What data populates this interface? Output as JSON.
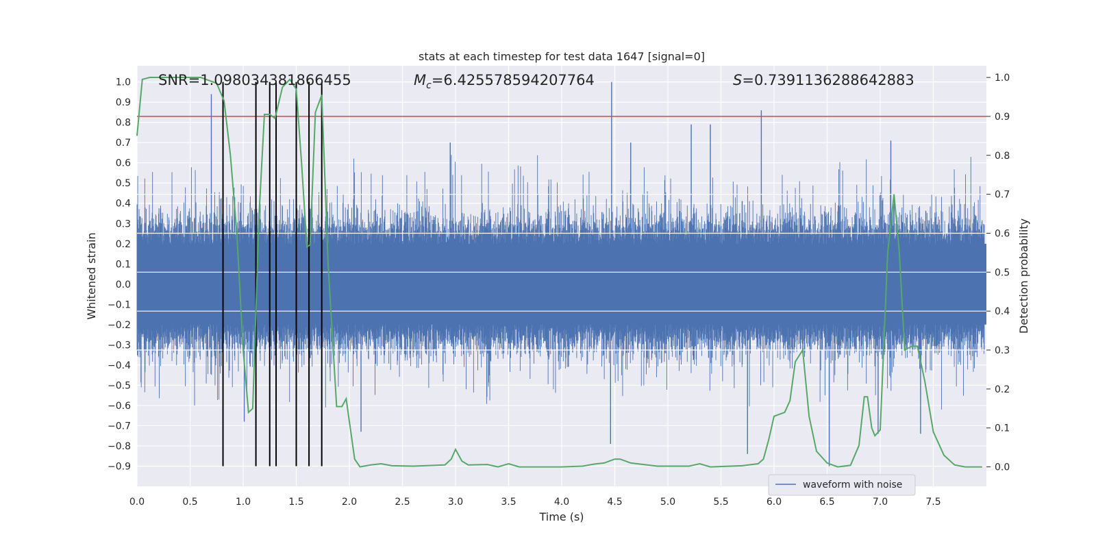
{
  "chart_data": {
    "type": "line",
    "title": "stats at each timestep for test data 1647 [signal=0]",
    "xlabel": "Time (s)",
    "ylabel_left": "Whitened strain",
    "ylabel_right": "Detection probability",
    "xlim": [
      0.0,
      8.0
    ],
    "ylim_left": [
      -1.0,
      1.08
    ],
    "ylim_right": [
      -0.05,
      1.03
    ],
    "x_ticks": [
      "0.0",
      "0.5",
      "1.0",
      "1.5",
      "2.0",
      "2.5",
      "3.0",
      "3.5",
      "4.0",
      "4.5",
      "5.0",
      "5.5",
      "6.0",
      "6.5",
      "7.0",
      "7.5"
    ],
    "y_ticks_left": [
      "−0.9",
      "−0.8",
      "−0.7",
      "−0.6",
      "−0.5",
      "−0.4",
      "−0.3",
      "−0.2",
      "−0.1",
      "0.0",
      "0.1",
      "0.2",
      "0.3",
      "0.4",
      "0.5",
      "0.6",
      "0.7",
      "0.8",
      "0.9",
      "1.0"
    ],
    "y_ticks_right": [
      "0.0",
      "0.1",
      "0.2",
      "0.3",
      "0.4",
      "0.5",
      "0.6",
      "0.7",
      "0.8",
      "0.9",
      "1.0"
    ],
    "grid": true,
    "legend_position": "lower-right",
    "annotations": {
      "snr": "SNR=1.098034381866455",
      "mc_symbol": "M",
      "mc_sub": "c",
      "mc_value": "=6.425578594207764",
      "s_symbol": "S",
      "s_value": "=0.7391136288642883"
    },
    "threshold": {
      "axis": "right",
      "value": 0.9,
      "color": "#c44e52"
    },
    "event_markers_x": [
      0.81,
      1.12,
      1.25,
      1.31,
      1.5,
      1.62,
      1.74
    ],
    "event_marker_range_left": [
      -0.9,
      1.0
    ],
    "series": [
      {
        "name": "waveform with noise",
        "axis": "left",
        "color": "#4c72b0",
        "style": "noise",
        "seed": 1647,
        "spikes": [
          {
            "x": 0.7,
            "y": 0.94
          },
          {
            "x": 4.47,
            "y": 1.0
          },
          {
            "x": 5.88,
            "y": 0.86
          },
          {
            "x": 4.46,
            "y": -0.79
          },
          {
            "x": 5.75,
            "y": -0.84
          },
          {
            "x": 1.01,
            "y": -0.68
          },
          {
            "x": 6.52,
            "y": -0.9
          },
          {
            "x": 7.38,
            "y": -0.74
          },
          {
            "x": 2.11,
            "y": -0.73
          },
          {
            "x": 5.22,
            "y": 0.79
          },
          {
            "x": 5.4,
            "y": 0.79
          },
          {
            "x": 7.1,
            "y": 0.71
          },
          {
            "x": 6.98,
            "y": -0.74
          },
          {
            "x": 4.65,
            "y": 0.7
          },
          {
            "x": 2.95,
            "y": 0.7
          }
        ]
      },
      {
        "name": "detection probability",
        "axis": "right",
        "color": "#55a868",
        "points": [
          [
            0.0,
            0.85
          ],
          [
            0.05,
            0.995
          ],
          [
            0.12,
            1.0
          ],
          [
            0.6,
            1.0
          ],
          [
            0.75,
            0.985
          ],
          [
            0.82,
            0.94
          ],
          [
            0.88,
            0.8
          ],
          [
            0.94,
            0.6
          ],
          [
            1.0,
            0.3
          ],
          [
            1.05,
            0.14
          ],
          [
            1.09,
            0.15
          ],
          [
            1.15,
            0.65
          ],
          [
            1.2,
            0.905
          ],
          [
            1.25,
            0.905
          ],
          [
            1.3,
            0.895
          ],
          [
            1.37,
            0.975
          ],
          [
            1.44,
            0.995
          ],
          [
            1.5,
            0.97
          ],
          [
            1.55,
            0.78
          ],
          [
            1.6,
            0.565
          ],
          [
            1.63,
            0.57
          ],
          [
            1.68,
            0.91
          ],
          [
            1.74,
            0.955
          ],
          [
            1.8,
            0.52
          ],
          [
            1.88,
            0.155
          ],
          [
            1.93,
            0.155
          ],
          [
            1.97,
            0.175
          ],
          [
            2.05,
            0.02
          ],
          [
            2.1,
            0.0
          ],
          [
            2.2,
            0.005
          ],
          [
            2.3,
            0.008
          ],
          [
            2.4,
            0.003
          ],
          [
            2.6,
            0.002
          ],
          [
            2.9,
            0.005
          ],
          [
            2.96,
            0.02
          ],
          [
            3.0,
            0.045
          ],
          [
            3.06,
            0.015
          ],
          [
            3.12,
            0.005
          ],
          [
            3.3,
            0.006
          ],
          [
            3.4,
            0.0
          ],
          [
            3.5,
            0.008
          ],
          [
            3.6,
            0.0
          ],
          [
            4.0,
            0.0
          ],
          [
            4.2,
            0.002
          ],
          [
            4.3,
            0.007
          ],
          [
            4.4,
            0.01
          ],
          [
            4.5,
            0.02
          ],
          [
            4.55,
            0.02
          ],
          [
            4.65,
            0.01
          ],
          [
            4.9,
            0.002
          ],
          [
            5.2,
            0.002
          ],
          [
            5.3,
            0.008
          ],
          [
            5.4,
            0.0
          ],
          [
            5.7,
            0.003
          ],
          [
            5.85,
            0.008
          ],
          [
            5.9,
            0.02
          ],
          [
            5.95,
            0.07
          ],
          [
            6.0,
            0.13
          ],
          [
            6.1,
            0.14
          ],
          [
            6.15,
            0.17
          ],
          [
            6.2,
            0.27
          ],
          [
            6.27,
            0.3
          ],
          [
            6.33,
            0.13
          ],
          [
            6.4,
            0.04
          ],
          [
            6.5,
            0.01
          ],
          [
            6.6,
            0.0
          ],
          [
            6.72,
            0.004
          ],
          [
            6.8,
            0.055
          ],
          [
            6.85,
            0.18
          ],
          [
            6.88,
            0.18
          ],
          [
            6.92,
            0.1
          ],
          [
            6.95,
            0.08
          ],
          [
            7.0,
            0.095
          ],
          [
            7.07,
            0.55
          ],
          [
            7.13,
            0.7
          ],
          [
            7.18,
            0.55
          ],
          [
            7.23,
            0.3
          ],
          [
            7.3,
            0.31
          ],
          [
            7.35,
            0.31
          ],
          [
            7.42,
            0.22
          ],
          [
            7.5,
            0.09
          ],
          [
            7.6,
            0.03
          ],
          [
            7.7,
            0.005
          ],
          [
            7.8,
            0.0
          ],
          [
            7.96,
            0.0
          ]
        ]
      }
    ]
  }
}
